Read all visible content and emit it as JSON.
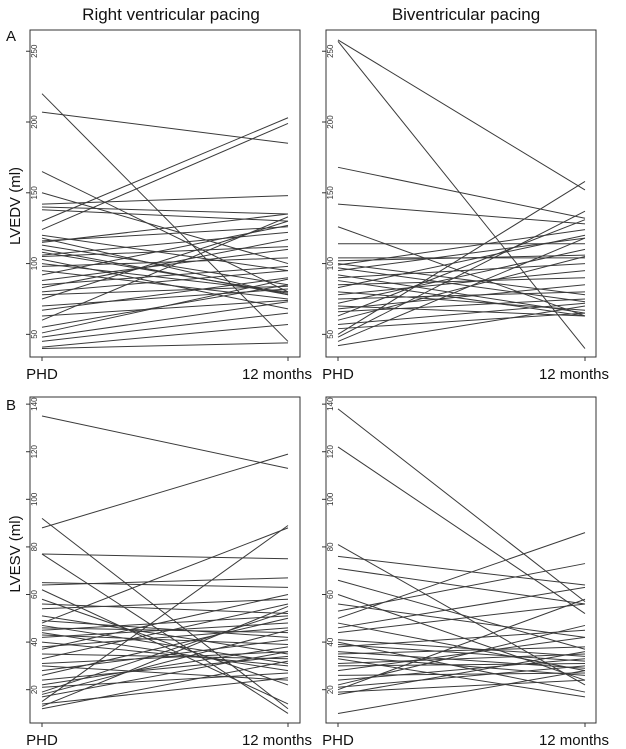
{
  "panel_labels": [
    "A",
    "B"
  ],
  "chart_data": [
    {
      "type": "line",
      "title": "Right ventricular pacing",
      "xlabel": "",
      "ylabel": "LVEDV (ml)",
      "categories": [
        "PHD",
        "12 months"
      ],
      "yticks": [
        50,
        100,
        150,
        200,
        250
      ],
      "ylim": [
        34,
        265
      ],
      "grid": false,
      "series": [
        {
          "values": [
            220,
            45
          ]
        },
        {
          "values": [
            207,
            185
          ]
        },
        {
          "values": [
            165,
            80
          ]
        },
        {
          "values": [
            150,
            100
          ]
        },
        {
          "values": [
            142,
            148
          ]
        },
        {
          "values": [
            140,
            135
          ]
        },
        {
          "values": [
            138,
            130
          ]
        },
        {
          "values": [
            130,
            203
          ]
        },
        {
          "values": [
            124,
            199
          ]
        },
        {
          "values": [
            120,
            95
          ]
        },
        {
          "values": [
            118,
            78
          ]
        },
        {
          "values": [
            116,
            126
          ]
        },
        {
          "values": [
            115,
            135
          ]
        },
        {
          "values": [
            113,
            85
          ]
        },
        {
          "values": [
            110,
            78
          ]
        },
        {
          "values": [
            108,
            79
          ]
        },
        {
          "values": [
            106,
            122
          ]
        },
        {
          "values": [
            105,
            112
          ]
        },
        {
          "values": [
            103,
            68
          ]
        },
        {
          "values": [
            100,
            80
          ]
        },
        {
          "values": [
            98,
            104
          ]
        },
        {
          "values": [
            95,
            75
          ]
        },
        {
          "values": [
            92,
            127
          ]
        },
        {
          "values": [
            88,
            110
          ]
        },
        {
          "values": [
            85,
            98
          ]
        },
        {
          "values": [
            83,
            117
          ]
        },
        {
          "values": [
            80,
            95
          ]
        },
        {
          "values": [
            78,
            84
          ]
        },
        {
          "values": [
            75,
            130
          ]
        },
        {
          "values": [
            70,
            82
          ]
        },
        {
          "values": [
            67,
            90
          ]
        },
        {
          "values": [
            63,
            74
          ]
        },
        {
          "values": [
            60,
            133
          ]
        },
        {
          "values": [
            55,
            85
          ]
        },
        {
          "values": [
            51,
            89
          ]
        },
        {
          "values": [
            48,
            73
          ]
        },
        {
          "values": [
            45,
            65
          ]
        },
        {
          "values": [
            41,
            57
          ]
        },
        {
          "values": [
            40,
            44
          ]
        }
      ]
    },
    {
      "type": "line",
      "title": "Biventricular pacing",
      "xlabel": "",
      "ylabel": "",
      "categories": [
        "PHD",
        "12 months"
      ],
      "yticks": [
        50,
        100,
        150,
        200,
        250
      ],
      "ylim": [
        34,
        265
      ],
      "grid": false,
      "series": [
        {
          "values": [
            258,
            152
          ]
        },
        {
          "values": [
            257,
            40
          ]
        },
        {
          "values": [
            168,
            132
          ]
        },
        {
          "values": [
            142,
            128
          ]
        },
        {
          "values": [
            126,
            63
          ]
        },
        {
          "values": [
            114,
            114
          ]
        },
        {
          "values": [
            104,
            104
          ]
        },
        {
          "values": [
            102,
            106
          ]
        },
        {
          "values": [
            100,
            78
          ]
        },
        {
          "values": [
            99,
            124
          ]
        },
        {
          "values": [
            97,
            73
          ]
        },
        {
          "values": [
            95,
            118
          ]
        },
        {
          "values": [
            92,
            65
          ]
        },
        {
          "values": [
            90,
            100
          ]
        },
        {
          "values": [
            88,
            63
          ]
        },
        {
          "values": [
            85,
            90
          ]
        },
        {
          "values": [
            83,
            120
          ]
        },
        {
          "values": [
            80,
            67
          ]
        },
        {
          "values": [
            78,
            95
          ]
        },
        {
          "values": [
            75,
            80
          ]
        },
        {
          "values": [
            72,
            110
          ]
        },
        {
          "values": [
            70,
            63
          ]
        },
        {
          "values": [
            68,
            85
          ]
        },
        {
          "values": [
            66,
            75
          ]
        },
        {
          "values": [
            63,
            131
          ]
        },
        {
          "values": [
            60,
            105
          ]
        },
        {
          "values": [
            57,
            72
          ]
        },
        {
          "values": [
            54,
            65
          ]
        },
        {
          "values": [
            50,
            158
          ]
        },
        {
          "values": [
            48,
            137
          ]
        },
        {
          "values": [
            45,
            118
          ]
        },
        {
          "values": [
            42,
            70
          ]
        }
      ]
    },
    {
      "type": "line",
      "title": "",
      "xlabel": "",
      "ylabel": "LVESV (ml)",
      "categories": [
        "PHD",
        "12 months"
      ],
      "yticks": [
        20,
        40,
        60,
        80,
        100,
        120,
        140
      ],
      "ylim": [
        6,
        143
      ],
      "grid": false,
      "series": [
        {
          "values": [
            135,
            113
          ]
        },
        {
          "values": [
            92,
            12
          ]
        },
        {
          "values": [
            88,
            119
          ]
        },
        {
          "values": [
            77,
            75
          ]
        },
        {
          "values": [
            77,
            10
          ]
        },
        {
          "values": [
            65,
            63
          ]
        },
        {
          "values": [
            64,
            67
          ]
        },
        {
          "values": [
            62,
            14
          ]
        },
        {
          "values": [
            58,
            22
          ]
        },
        {
          "values": [
            56,
            52
          ]
        },
        {
          "values": [
            54,
            58
          ]
        },
        {
          "values": [
            51,
            35
          ]
        },
        {
          "values": [
            49,
            42
          ]
        },
        {
          "values": [
            48,
            88
          ]
        },
        {
          "values": [
            47,
            31
          ]
        },
        {
          "values": [
            46,
            44
          ]
        },
        {
          "values": [
            45,
            51
          ]
        },
        {
          "values": [
            44,
            28
          ]
        },
        {
          "values": [
            43,
            39
          ]
        },
        {
          "values": [
            42,
            48
          ]
        },
        {
          "values": [
            40,
            30
          ]
        },
        {
          "values": [
            38,
            46
          ]
        },
        {
          "values": [
            37,
            60
          ]
        },
        {
          "values": [
            35,
            33
          ]
        },
        {
          "values": [
            33,
            56
          ]
        },
        {
          "values": [
            31,
            36
          ]
        },
        {
          "values": [
            30,
            24
          ]
        },
        {
          "values": [
            28,
            41
          ]
        },
        {
          "values": [
            26,
            50
          ]
        },
        {
          "values": [
            24,
            34
          ]
        },
        {
          "values": [
            22,
            38
          ]
        },
        {
          "values": [
            21,
            27
          ]
        },
        {
          "values": [
            19,
            53
          ]
        },
        {
          "values": [
            18,
            45
          ]
        },
        {
          "values": [
            17,
            36
          ]
        },
        {
          "values": [
            15,
            89
          ]
        },
        {
          "values": [
            14,
            25
          ]
        },
        {
          "values": [
            13,
            55
          ]
        },
        {
          "values": [
            12,
            32
          ]
        }
      ]
    },
    {
      "type": "line",
      "title": "",
      "xlabel": "",
      "ylabel": "",
      "categories": [
        "PHD",
        "12 months"
      ],
      "yticks": [
        20,
        40,
        60,
        80,
        100,
        120,
        140
      ],
      "ylim": [
        6,
        143
      ],
      "grid": false,
      "series": [
        {
          "values": [
            138,
            57
          ]
        },
        {
          "values": [
            122,
            52
          ]
        },
        {
          "values": [
            81,
            22
          ]
        },
        {
          "values": [
            76,
            64
          ]
        },
        {
          "values": [
            71,
            56
          ]
        },
        {
          "values": [
            66,
            37
          ]
        },
        {
          "values": [
            60,
            24
          ]
        },
        {
          "values": [
            56,
            42
          ]
        },
        {
          "values": [
            53,
            73
          ]
        },
        {
          "values": [
            50,
            86
          ]
        },
        {
          "values": [
            48,
            28
          ]
        },
        {
          "values": [
            46,
            63
          ]
        },
        {
          "values": [
            44,
            56
          ]
        },
        {
          "values": [
            41,
            34
          ]
        },
        {
          "values": [
            40,
            19
          ]
        },
        {
          "values": [
            39,
            32
          ]
        },
        {
          "values": [
            38,
            45
          ]
        },
        {
          "values": [
            36,
            29
          ]
        },
        {
          "values": [
            35,
            38
          ]
        },
        {
          "values": [
            34,
            26
          ]
        },
        {
          "values": [
            33,
            17
          ]
        },
        {
          "values": [
            31,
            35
          ]
        },
        {
          "values": [
            30,
            31
          ]
        },
        {
          "values": [
            28,
            42
          ]
        },
        {
          "values": [
            26,
            27
          ]
        },
        {
          "values": [
            24,
            33
          ]
        },
        {
          "values": [
            22,
            47
          ]
        },
        {
          "values": [
            21,
            30
          ]
        },
        {
          "values": [
            20,
            58
          ]
        },
        {
          "values": [
            19,
            24
          ]
        },
        {
          "values": [
            18,
            36
          ]
        },
        {
          "values": [
            10,
            28
          ]
        }
      ]
    }
  ]
}
